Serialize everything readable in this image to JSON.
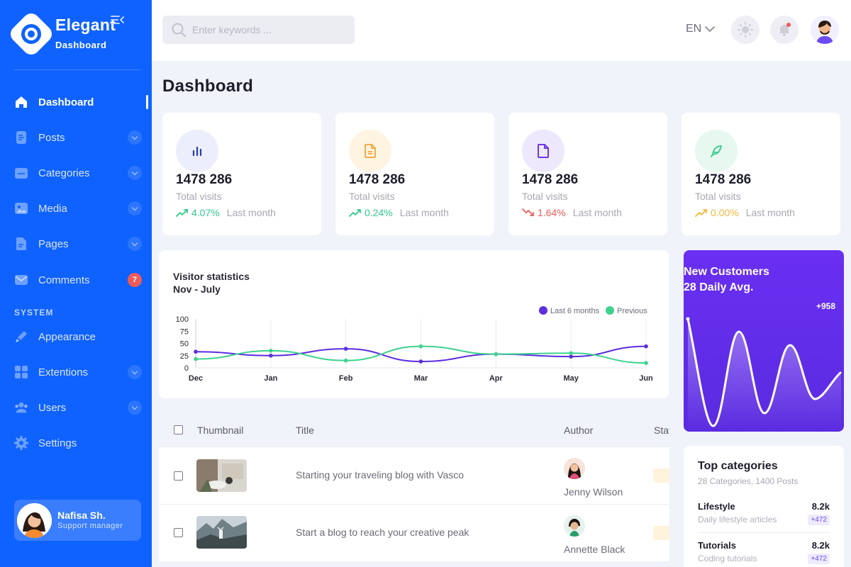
{
  "brand": {
    "name": "Elegant",
    "subtitle": "Dashboard"
  },
  "sidebar": {
    "items": [
      {
        "label": "Dashboard",
        "icon": "home-icon",
        "active": true
      },
      {
        "label": "Posts",
        "icon": "posts-icon",
        "expandable": true
      },
      {
        "label": "Categories",
        "icon": "folder-icon",
        "expandable": true
      },
      {
        "label": "Media",
        "icon": "image-icon",
        "expandable": true
      },
      {
        "label": "Pages",
        "icon": "page-icon",
        "expandable": true
      },
      {
        "label": "Comments",
        "icon": "mail-icon",
        "badge": "7"
      }
    ],
    "system_label": "SYSTEM",
    "system_items": [
      {
        "label": "Appearance",
        "icon": "brush-icon"
      },
      {
        "label": "Extentions",
        "icon": "grid-icon",
        "expandable": true
      },
      {
        "label": "Users",
        "icon": "users-icon",
        "expandable": true
      },
      {
        "label": "Settings",
        "icon": "gear-icon"
      }
    ],
    "profile": {
      "name": "Nafisa Sh.",
      "role": "Support manager"
    }
  },
  "header": {
    "search_placeholder": "Enter keywords ...",
    "language": "EN"
  },
  "page": {
    "title": "Dashboard"
  },
  "stats": [
    {
      "value": "1478 286",
      "label": "Total visits",
      "change": "4.07%",
      "period": "Last month",
      "trend": "up",
      "color": "#2fcb8a",
      "icon": "bar-chart-icon",
      "icon_bg": "#eceefb",
      "icon_color": "#2b3aa8"
    },
    {
      "value": "1478 286",
      "label": "Total visits",
      "change": "0.24%",
      "period": "Last month",
      "trend": "up",
      "color": "#2fcb8a",
      "icon": "document-icon",
      "icon_bg": "#fff4e2",
      "icon_color": "#f3a43a"
    },
    {
      "value": "1478 286",
      "label": "Total visits",
      "change": "1.64%",
      "period": "Last month",
      "trend": "down",
      "color": "#ef5a5a",
      "icon": "file-icon",
      "icon_bg": "#eee8fd",
      "icon_color": "#6a3ae0"
    },
    {
      "value": "1478 286",
      "label": "Total visits",
      "change": "0.00%",
      "period": "Last month",
      "trend": "flat",
      "color": "#f3b63a",
      "icon": "feather-icon",
      "icon_bg": "#e6f8ef",
      "icon_color": "#2fcb8a"
    }
  ],
  "chart_data": {
    "type": "line",
    "title": "Visitor statistics",
    "subtitle": "Nov - July",
    "categories": [
      "Dec",
      "Jan",
      "Feb",
      "Mar",
      "Apr",
      "May",
      "Jun"
    ],
    "ylim": [
      0,
      100
    ],
    "yticks": [
      0,
      25,
      50,
      75,
      100
    ],
    "legend_position": "top-right",
    "grid": "vertical",
    "series": [
      {
        "name": "Last 6 months",
        "color": "#5b2ee0",
        "values": [
          33,
          25,
          39,
          13,
          28,
          23,
          44
        ]
      },
      {
        "name": "Previous",
        "color": "#3fd28f",
        "values": [
          18,
          35,
          15,
          44,
          28,
          30,
          10
        ]
      }
    ]
  },
  "new_customers": {
    "title_line1": "New Customers",
    "title_line2": "28 Daily Avg.",
    "change": "+958"
  },
  "top_categories": {
    "title": "Top categories",
    "subtitle": "28 Categories, 1400 Posts",
    "items": [
      {
        "name": "Lifestyle",
        "value": "8.2k",
        "desc": "Daily lifestyle articles",
        "badge": "+472"
      },
      {
        "name": "Tutorials",
        "value": "8.2k",
        "desc": "Coding tutorials",
        "badge": "+472"
      }
    ]
  },
  "table": {
    "headers": [
      "Thumbnail",
      "Title",
      "Author",
      "Status"
    ],
    "rows": [
      {
        "title": "Starting your traveling blog with Vasco",
        "author": "Jenny Wilson"
      },
      {
        "title": "Start a blog to reach your creative peak",
        "author": "Annette Black"
      }
    ]
  }
}
